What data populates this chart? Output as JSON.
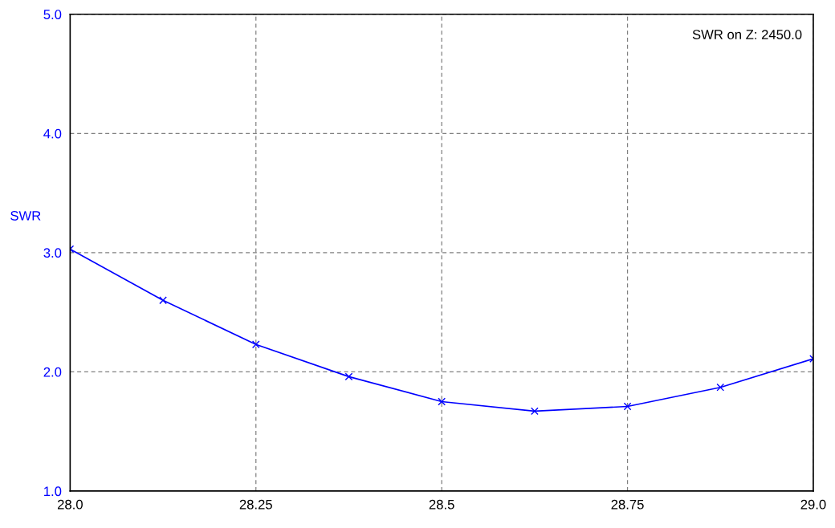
{
  "chart_data": {
    "type": "line",
    "ylabel": "SWR",
    "annotations": [
      "SWR on Z: 2450.0"
    ],
    "x": [
      28.0,
      28.125,
      28.25,
      28.375,
      28.5,
      28.625,
      28.75,
      28.875,
      29.0
    ],
    "series": [
      {
        "color": "#0000ff",
        "values": [
          3.03,
          2.6,
          2.23,
          1.96,
          1.75,
          1.67,
          1.71,
          1.87,
          2.11
        ]
      }
    ],
    "xlim": [
      28.0,
      29.0
    ],
    "xticks": [
      {
        "value": 28.0,
        "label": "28.0"
      },
      28.25,
      28.5,
      28.75,
      {
        "value": 29.0,
        "label": "29.0"
      }
    ],
    "ylim": [
      1.0,
      5.0
    ],
    "yticks": [
      {
        "value": 1.0,
        "label": "1.0"
      },
      {
        "value": 2.0,
        "label": "2.0"
      },
      {
        "value": 3.0,
        "label": "3.0"
      },
      {
        "value": 4.0,
        "label": "4.0"
      },
      {
        "value": 5.0,
        "label": "5.0"
      }
    ],
    "grid": true,
    "marker": "cross",
    "line_style": "solid",
    "legend": false
  }
}
